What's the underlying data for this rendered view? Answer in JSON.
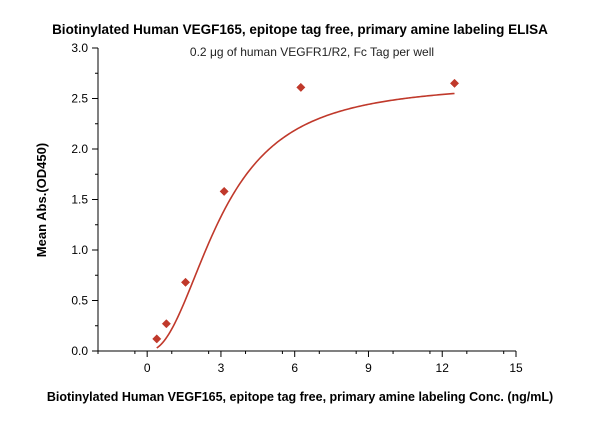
{
  "chart_data": {
    "type": "scatter",
    "title": "Biotinylated Human VEGF165, epitope tag free, primary amine labeling ELISA",
    "subtitle": "0.2 μg of human VEGFR1/R2, Fc Tag per well",
    "xlabel": "Biotinylated Human VEGF165, epitope tag free, primary amine labeling Conc. (ng/mL)",
    "ylabel": "Mean Abs.(OD450)",
    "xlim": [
      -2,
      15
    ],
    "ylim": [
      0,
      3.0
    ],
    "x_ticks": [
      0,
      3,
      6,
      9,
      12,
      15
    ],
    "y_ticks": [
      0.0,
      0.5,
      1.0,
      1.5,
      2.0,
      2.5,
      3.0
    ],
    "x_tick_labels": [
      "0",
      "3",
      "6",
      "9",
      "12",
      "15"
    ],
    "y_tick_labels": [
      "0.0",
      "0.5",
      "1.0",
      "1.5",
      "2.0",
      "2.5",
      "3.0"
    ],
    "grid": false,
    "legend": "none",
    "series": [
      {
        "marker": "diamond",
        "color": "#c0392b",
        "x": [
          0.39,
          0.78,
          1.56,
          3.13,
          6.25,
          12.5
        ],
        "y": [
          0.12,
          0.27,
          0.68,
          1.58,
          2.61,
          2.65
        ]
      }
    ],
    "fit_curve": {
      "type": "four-parameter logistic",
      "color": "#c0392b",
      "bottom": 0.0,
      "top": 2.66,
      "ec50": 3.0,
      "hill": 2.2
    }
  }
}
